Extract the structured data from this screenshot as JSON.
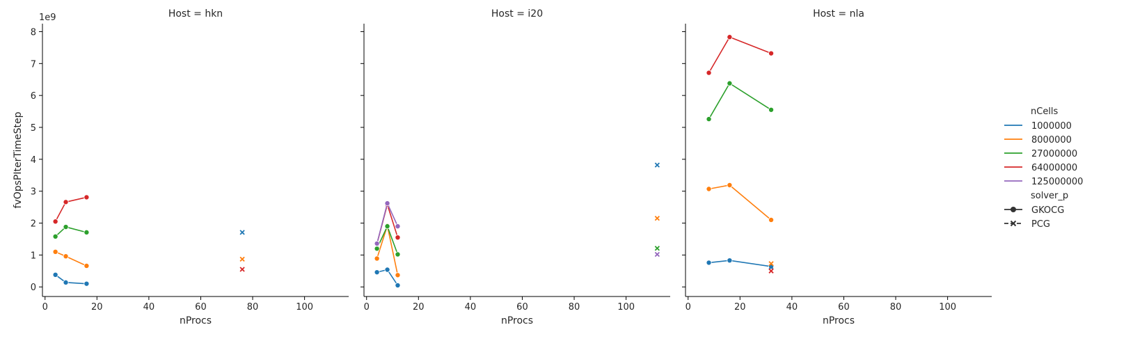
{
  "chart_data": {
    "type": "line",
    "facet_label": "Host",
    "xlabel": "nProcs",
    "ylabel": "fvOpsPIterTimeStep",
    "y_offset_text": "1e9",
    "xlim": [
      -1,
      117
    ],
    "ylim": [
      -300000000.0,
      8250000000.0
    ],
    "xticks": [
      0,
      20,
      40,
      60,
      80,
      100
    ],
    "yticks": [
      0,
      1,
      2,
      3,
      4,
      5,
      6,
      7,
      8
    ],
    "y_scale": 1000000000.0,
    "hue_title": "nCells",
    "style_title": "solver_p",
    "hue_levels": [
      {
        "name": "1000000",
        "color": "#1f77b4"
      },
      {
        "name": "8000000",
        "color": "#ff7f0e"
      },
      {
        "name": "27000000",
        "color": "#2ca02c"
      },
      {
        "name": "64000000",
        "color": "#d62728"
      },
      {
        "name": "125000000",
        "color": "#9467bd"
      }
    ],
    "style_levels": [
      {
        "name": "GKOCG",
        "marker": "circle",
        "dash": "solid"
      },
      {
        "name": "PCG",
        "marker": "x",
        "dash": "dashed"
      }
    ],
    "panels": [
      {
        "title": "Host = hkn",
        "series": [
          {
            "nCells": "1000000",
            "solver": "GKOCG",
            "x": [
              4,
              8,
              16
            ],
            "y": [
              380000000.0,
              140000000.0,
              100000000.0
            ]
          },
          {
            "nCells": "8000000",
            "solver": "GKOCG",
            "x": [
              4,
              8,
              16
            ],
            "y": [
              1100000000.0,
              960000000.0,
              660000000.0
            ]
          },
          {
            "nCells": "27000000",
            "solver": "GKOCG",
            "x": [
              4,
              8,
              16
            ],
            "y": [
              1580000000.0,
              1880000000.0,
              1710000000.0
            ]
          },
          {
            "nCells": "64000000",
            "solver": "GKOCG",
            "x": [
              4,
              8,
              16
            ],
            "y": [
              2050000000.0,
              2660000000.0,
              2810000000.0
            ]
          },
          {
            "nCells": "1000000",
            "solver": "PCG",
            "x": [
              76
            ],
            "y": [
              1710000000.0
            ]
          },
          {
            "nCells": "8000000",
            "solver": "PCG",
            "x": [
              76
            ],
            "y": [
              870000000.0
            ]
          },
          {
            "nCells": "64000000",
            "solver": "PCG",
            "x": [
              76
            ],
            "y": [
              550000000.0
            ]
          }
        ]
      },
      {
        "title": "Host = i20",
        "series": [
          {
            "nCells": "1000000",
            "solver": "GKOCG",
            "x": [
              4,
              8,
              12
            ],
            "y": [
              460000000.0,
              540000000.0,
              50000000.0
            ]
          },
          {
            "nCells": "8000000",
            "solver": "GKOCG",
            "x": [
              4,
              8,
              12
            ],
            "y": [
              890000000.0,
              1920000000.0,
              370000000.0
            ]
          },
          {
            "nCells": "27000000",
            "solver": "GKOCG",
            "x": [
              4,
              8,
              12
            ],
            "y": [
              1200000000.0,
              1900000000.0,
              1020000000.0
            ]
          },
          {
            "nCells": "64000000",
            "solver": "GKOCG",
            "x": [
              4,
              8,
              12
            ],
            "y": [
              1350000000.0,
              2580000000.0,
              1550000000.0
            ]
          },
          {
            "nCells": "125000000",
            "solver": "GKOCG",
            "x": [
              4,
              8,
              12
            ],
            "y": [
              1360000000.0,
              2620000000.0,
              1900000000.0
            ]
          },
          {
            "nCells": "1000000",
            "solver": "PCG",
            "x": [
              112
            ],
            "y": [
              3820000000.0
            ]
          },
          {
            "nCells": "8000000",
            "solver": "PCG",
            "x": [
              112
            ],
            "y": [
              2150000000.0
            ]
          },
          {
            "nCells": "27000000",
            "solver": "PCG",
            "x": [
              112
            ],
            "y": [
              1210000000.0
            ]
          },
          {
            "nCells": "125000000",
            "solver": "PCG",
            "x": [
              112
            ],
            "y": [
              1020000000.0
            ]
          }
        ]
      },
      {
        "title": "Host = nla",
        "series": [
          {
            "nCells": "1000000",
            "solver": "GKOCG",
            "x": [
              8,
              16,
              32
            ],
            "y": [
              760000000.0,
              830000000.0,
              640000000.0
            ]
          },
          {
            "nCells": "8000000",
            "solver": "GKOCG",
            "x": [
              8,
              16,
              32
            ],
            "y": [
              3070000000.0,
              3190000000.0,
              2100000000.0
            ]
          },
          {
            "nCells": "27000000",
            "solver": "GKOCG",
            "x": [
              8,
              16,
              32
            ],
            "y": [
              5260000000.0,
              6380000000.0,
              5550000000.0
            ]
          },
          {
            "nCells": "64000000",
            "solver": "GKOCG",
            "x": [
              8,
              16,
              32
            ],
            "y": [
              6710000000.0,
              7830000000.0,
              7320000000.0
            ]
          },
          {
            "nCells": "1000000",
            "solver": "PCG",
            "x": [
              32
            ],
            "y": [
              620000000.0
            ]
          },
          {
            "nCells": "8000000",
            "solver": "PCG",
            "x": [
              32
            ],
            "y": [
              730000000.0
            ]
          },
          {
            "nCells": "64000000",
            "solver": "PCG",
            "x": [
              32
            ],
            "y": [
              500000000.0
            ]
          }
        ]
      }
    ]
  }
}
